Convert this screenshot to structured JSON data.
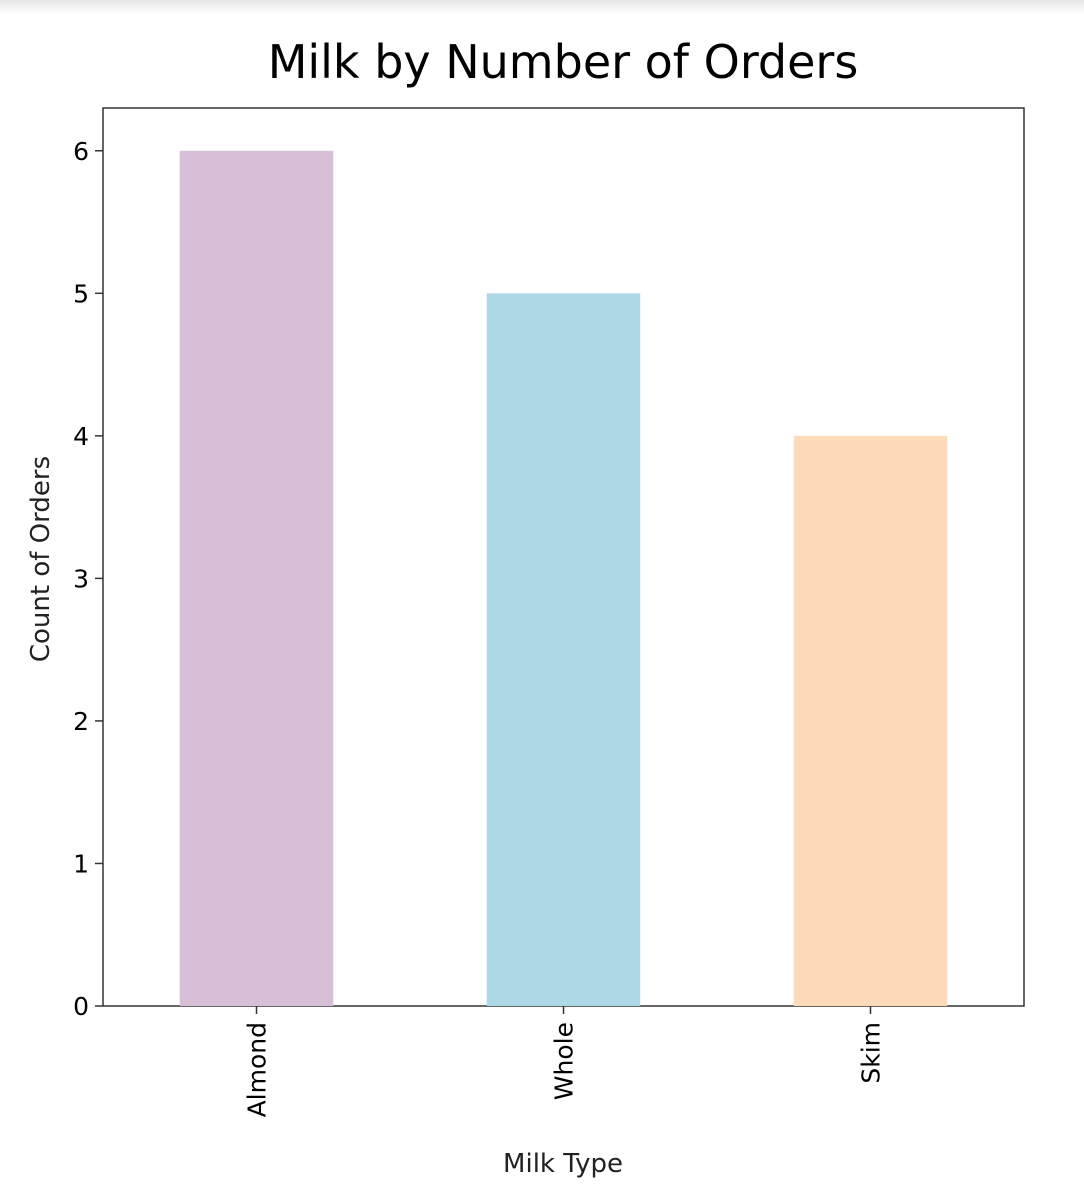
{
  "chart_data": {
    "type": "bar",
    "title": "Milk by Number of Orders",
    "xlabel": "Milk Type",
    "ylabel": "Count of Orders",
    "categories": [
      "Almond",
      "Whole",
      "Skim"
    ],
    "values": [
      6,
      5,
      4
    ],
    "bar_colors": [
      "#d8bfd8",
      "#add8e6",
      "#ffdab9"
    ],
    "ylim": [
      0,
      6.3
    ],
    "yticks": [
      "0",
      "1",
      "2",
      "3",
      "4",
      "5",
      "6"
    ],
    "grid": false,
    "x_tick_rotation": "vertical"
  }
}
